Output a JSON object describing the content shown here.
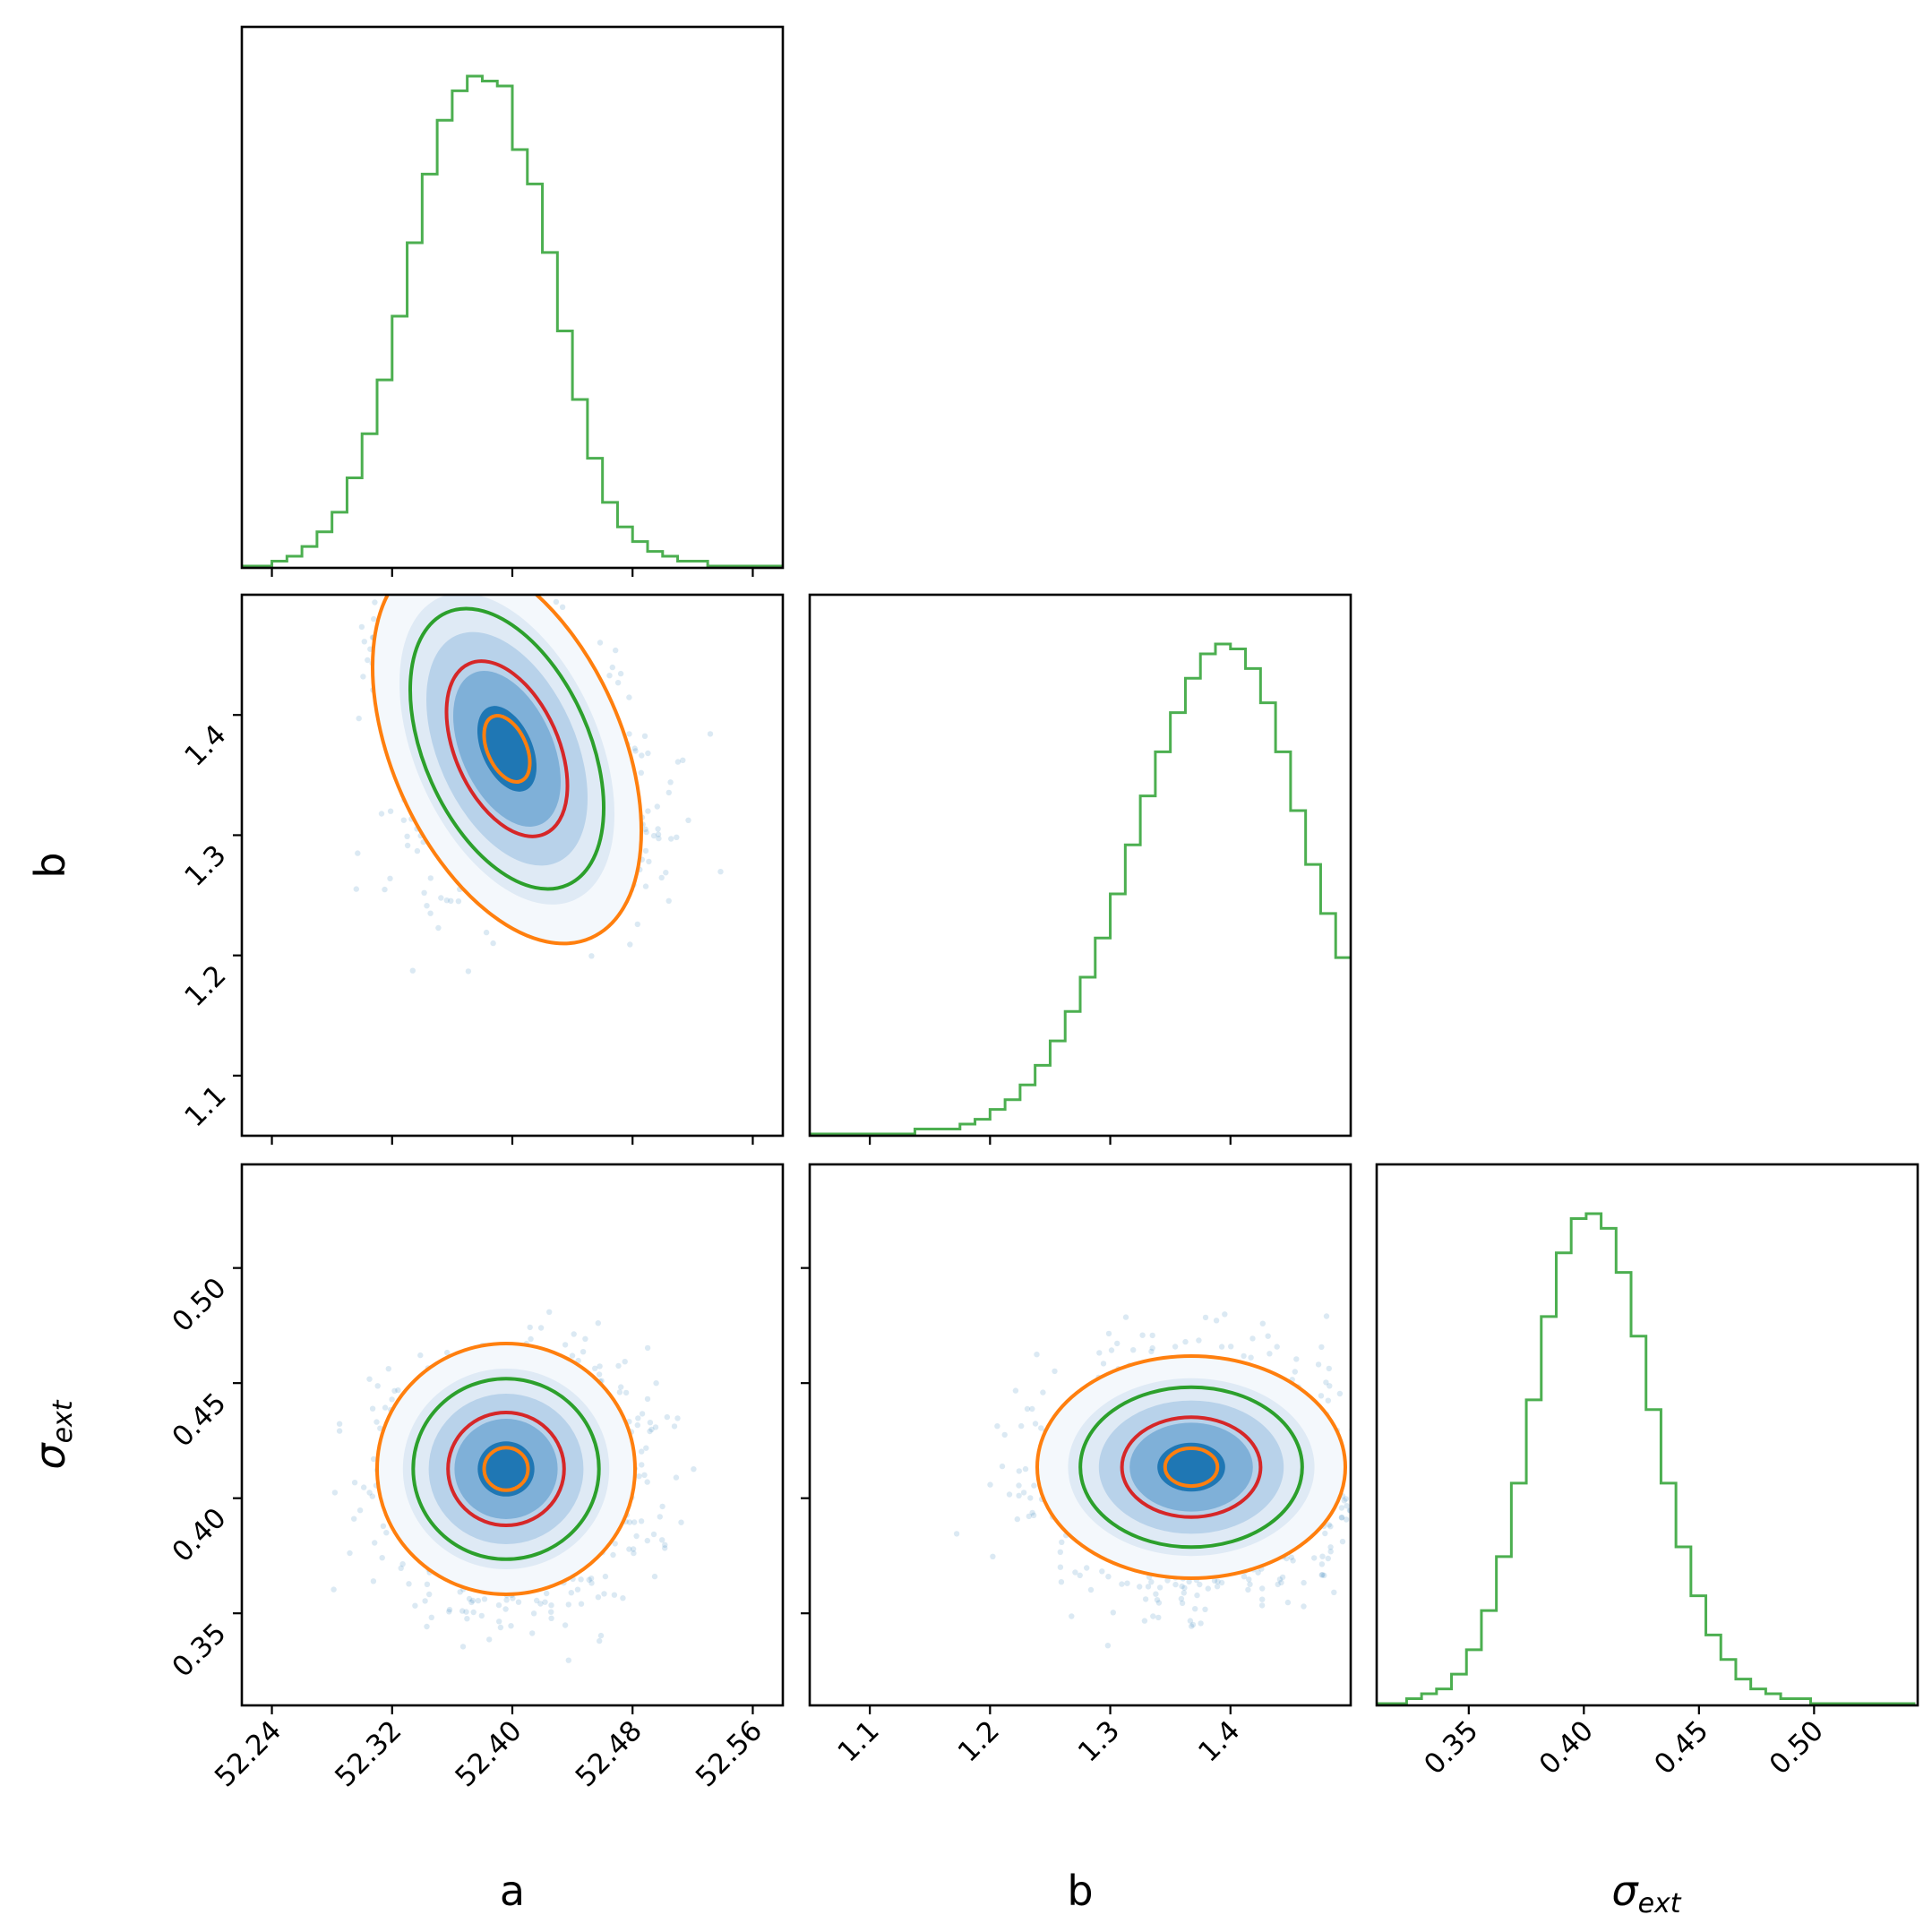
{
  "chart_data": {
    "type": "corner",
    "parameters": [
      "a",
      "b",
      "σ_ext"
    ],
    "axis_labels": {
      "x_bottom": [
        "a",
        "b",
        "σ_ext"
      ],
      "y_left": [
        "b",
        "σ_ext"
      ]
    },
    "colors": {
      "scatter_points": "#1f77b4",
      "histogram": "#4caf50",
      "contour_outer": "#ff7f0e",
      "contour_middle": "#2ca02c",
      "contour_inner": "#d62728",
      "contour_core": "#ff7f0e",
      "density_low": "#f4f8fc",
      "density_high": "#1f77b4"
    },
    "ranges": {
      "a": [
        52.22,
        52.58
      ],
      "b": [
        1.05,
        1.5
      ],
      "sigma_ext": [
        0.31,
        0.545
      ]
    },
    "ticks": {
      "a": {
        "values": [
          52.24,
          52.32,
          52.4,
          52.48,
          52.56
        ],
        "labels": [
          "52.24",
          "52.32",
          "52.40",
          "52.48",
          "52.56"
        ]
      },
      "b": {
        "values": [
          1.1,
          1.2,
          1.3,
          1.4
        ],
        "labels": [
          "1.1",
          "1.2",
          "1.3",
          "1.4"
        ]
      },
      "sigma_ext": {
        "values": [
          0.35,
          0.4,
          0.45,
          0.5
        ],
        "labels": [
          "0.35",
          "0.40",
          "0.45",
          "0.50"
        ]
      }
    },
    "posterior": {
      "a": {
        "mean": 52.405,
        "std": 0.035
      },
      "b": {
        "mode": 1.38,
        "std": 0.055,
        "skew": "left"
      },
      "sigma_ext": {
        "mean": 0.409,
        "std": 0.022
      },
      "correlation_a_b": -0.5,
      "correlation_a_sigma_ext": 0.0,
      "correlation_b_sigma_ext": 0.0
    },
    "histograms": {
      "a": {
        "bin_edges": [
          52.22,
          52.23,
          52.24,
          52.25,
          52.26,
          52.27,
          52.28,
          52.29,
          52.3,
          52.31,
          52.32,
          52.33,
          52.34,
          52.35,
          52.36,
          52.37,
          52.38,
          52.39,
          52.4,
          52.41,
          52.42,
          52.43,
          52.44,
          52.45,
          52.46,
          52.47,
          52.48,
          52.49,
          52.5,
          52.51,
          52.52,
          52.53,
          52.54,
          52.55,
          52.56,
          52.57,
          52.58
        ],
        "counts": [
          0.0,
          0.0,
          0.01,
          0.02,
          0.04,
          0.07,
          0.11,
          0.18,
          0.27,
          0.38,
          0.51,
          0.66,
          0.8,
          0.91,
          0.97,
          1.0,
          0.99,
          0.98,
          0.85,
          0.78,
          0.64,
          0.48,
          0.34,
          0.22,
          0.13,
          0.08,
          0.05,
          0.03,
          0.02,
          0.01,
          0.01,
          0.0,
          0.0,
          0.0,
          0.0,
          0.0
        ]
      },
      "b": {
        "bin_edges": [
          1.05,
          1.0625,
          1.075,
          1.0875,
          1.1,
          1.1125,
          1.125,
          1.1375,
          1.15,
          1.1625,
          1.175,
          1.1875,
          1.2,
          1.2125,
          1.225,
          1.2375,
          1.25,
          1.2625,
          1.275,
          1.2875,
          1.3,
          1.3125,
          1.325,
          1.3375,
          1.35,
          1.3625,
          1.375,
          1.3875,
          1.4,
          1.4125,
          1.425,
          1.4375,
          1.45,
          1.4625,
          1.475,
          1.4875,
          1.5
        ],
        "counts": [
          0.0,
          0.0,
          0.0,
          0.0,
          0.0,
          0.0,
          0.0,
          0.01,
          0.01,
          0.01,
          0.02,
          0.03,
          0.05,
          0.07,
          0.1,
          0.14,
          0.19,
          0.25,
          0.32,
          0.4,
          0.49,
          0.59,
          0.69,
          0.78,
          0.86,
          0.93,
          0.98,
          1.0,
          0.99,
          0.95,
          0.88,
          0.78,
          0.66,
          0.55,
          0.45,
          0.36
        ]
      },
      "sigma_ext": {
        "bin_edges": [
          0.31,
          0.3165,
          0.323,
          0.3295,
          0.336,
          0.3425,
          0.349,
          0.3555,
          0.362,
          0.3685,
          0.375,
          0.3815,
          0.388,
          0.3945,
          0.401,
          0.4075,
          0.414,
          0.4205,
          0.427,
          0.4335,
          0.44,
          0.4465,
          0.453,
          0.4595,
          0.466,
          0.4725,
          0.479,
          0.4855,
          0.492,
          0.4985,
          0.505,
          0.5115,
          0.518,
          0.5245,
          0.531,
          0.5375,
          0.544
        ],
        "counts": [
          0.0,
          0.0,
          0.01,
          0.02,
          0.03,
          0.06,
          0.11,
          0.19,
          0.3,
          0.45,
          0.62,
          0.79,
          0.92,
          0.99,
          1.0,
          0.97,
          0.88,
          0.75,
          0.6,
          0.45,
          0.32,
          0.22,
          0.14,
          0.09,
          0.05,
          0.03,
          0.02,
          0.01,
          0.01,
          0.0,
          0.0,
          0.0,
          0.0,
          0.0,
          0.0,
          0.0
        ]
      }
    },
    "contour_levels": [
      "core",
      "inner",
      "middle",
      "outer"
    ]
  }
}
